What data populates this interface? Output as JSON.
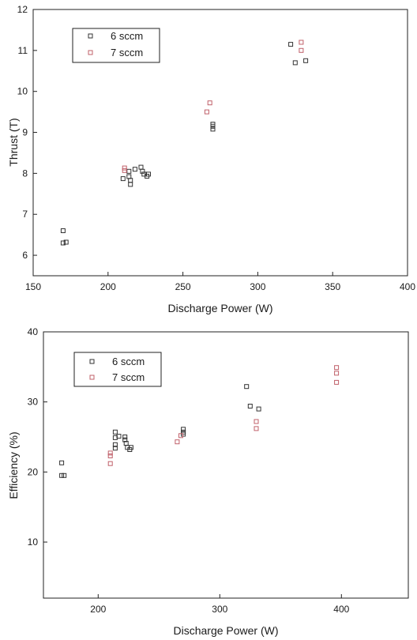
{
  "chart_data": [
    {
      "type": "scatter",
      "title": "",
      "xlabel": "Discharge Power (W)",
      "ylabel": "Thrust (T)",
      "xlim": [
        150,
        400
      ],
      "ylim": [
        5.5,
        12
      ],
      "xticks": [
        "150",
        "200",
        "250",
        "300",
        "350",
        "400"
      ],
      "xtick_values": [
        150,
        200,
        250,
        300,
        350,
        400
      ],
      "yticks": [
        "6",
        "7",
        "8",
        "9",
        "10",
        "11",
        "12"
      ],
      "ytick_values": [
        6,
        7,
        8,
        9,
        10,
        11,
        12
      ],
      "grid": false,
      "legend": "top-left",
      "series": [
        {
          "name": "6 sccm",
          "color": "#333333",
          "points": [
            [
              170,
              6.6
            ],
            [
              170,
              6.3
            ],
            [
              172,
              6.32
            ],
            [
              210,
              7.87
            ],
            [
              214,
              8.05
            ],
            [
              214,
              7.92
            ],
            [
              215,
              7.83
            ],
            [
              215,
              7.73
            ],
            [
              218,
              8.1
            ],
            [
              222,
              8.15
            ],
            [
              223,
              8.05
            ],
            [
              224,
              7.98
            ],
            [
              226,
              7.93
            ],
            [
              227,
              7.98
            ],
            [
              270,
              9.2
            ],
            [
              270,
              9.15
            ],
            [
              270,
              9.08
            ],
            [
              322,
              11.15
            ],
            [
              325,
              10.7
            ],
            [
              332,
              10.75
            ]
          ]
        },
        {
          "name": "7 sccm",
          "color": "#c0606a",
          "points": [
            [
              211,
              8.13
            ],
            [
              211,
              8.07
            ],
            [
              266,
              9.5
            ],
            [
              268,
              9.72
            ],
            [
              329,
              11.2
            ],
            [
              329,
              11.0
            ]
          ]
        }
      ]
    },
    {
      "type": "scatter",
      "title": "",
      "xlabel": "Discharge Power (W)",
      "ylabel": "Efficiency (%)",
      "xlim": [
        155,
        455
      ],
      "ylim": [
        2,
        40
      ],
      "xticks": [
        "200",
        "300",
        "400"
      ],
      "xtick_values": [
        200,
        300,
        400
      ],
      "yticks": [
        "10",
        "20",
        "30",
        "40"
      ],
      "ytick_values": [
        10,
        20,
        30,
        40
      ],
      "grid": false,
      "legend": "top-left",
      "series": [
        {
          "name": "6 sccm",
          "color": "#333333",
          "points": [
            [
              170,
              21.3
            ],
            [
              170,
              19.5
            ],
            [
              172,
              19.5
            ],
            [
              214,
              25.7
            ],
            [
              214,
              24.9
            ],
            [
              214,
              23.9
            ],
            [
              214,
              23.4
            ],
            [
              217,
              25.1
            ],
            [
              222,
              25.0
            ],
            [
              222,
              24.6
            ],
            [
              223,
              24.1
            ],
            [
              224,
              23.5
            ],
            [
              226,
              23.2
            ],
            [
              227,
              23.5
            ],
            [
              270,
              26.1
            ],
            [
              270,
              25.7
            ],
            [
              270,
              25.4
            ],
            [
              322,
              32.2
            ],
            [
              325,
              29.4
            ],
            [
              332,
              29.0
            ]
          ]
        },
        {
          "name": "7 sccm",
          "color": "#c0606a",
          "points": [
            [
              210,
              22.7
            ],
            [
              210,
              22.3
            ],
            [
              210,
              21.2
            ],
            [
              265,
              24.3
            ],
            [
              268,
              25.2
            ],
            [
              330,
              27.2
            ],
            [
              330,
              26.2
            ],
            [
              396,
              34.9
            ],
            [
              396,
              34.1
            ],
            [
              396,
              32.8
            ]
          ]
        }
      ]
    }
  ]
}
